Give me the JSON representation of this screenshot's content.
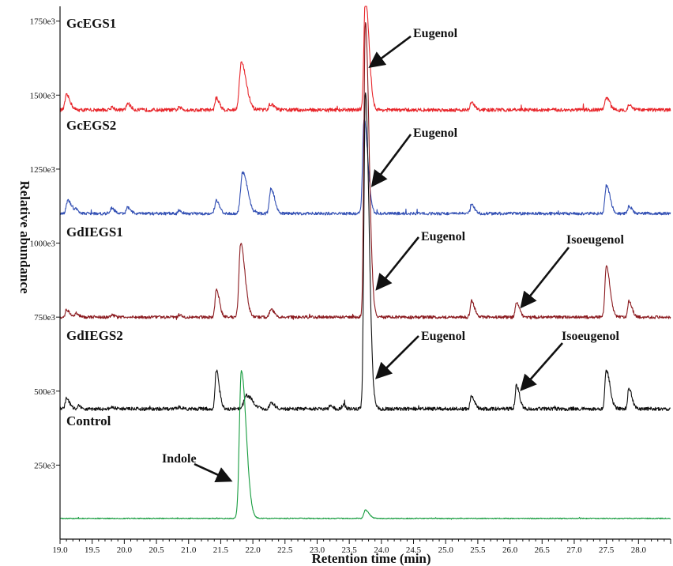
{
  "chart_data": {
    "type": "line",
    "xlabel": "Retention time (min)",
    "ylabel": "Relative abundance",
    "xlim": [
      19.0,
      28.5
    ],
    "ylim": [
      0,
      1800000
    ],
    "x_ticks": [
      "19.0",
      "19.5",
      "20.0",
      "20.5",
      "21.0",
      "21.5",
      "22.0",
      "22.5",
      "23.0",
      "23.5",
      "24.0",
      "24.5",
      "25.0",
      "25.5",
      "26.0",
      "26.5",
      "27.0",
      "27.5",
      "28.0"
    ],
    "y_ticks": [
      {
        "value": 250000,
        "label": "250e3"
      },
      {
        "value": 500000,
        "label": "500e3"
      },
      {
        "value": 750000,
        "label": "750e3"
      },
      {
        "value": 1000000,
        "label": "1000e3"
      },
      {
        "value": 1250000,
        "label": "1250e3"
      },
      {
        "value": 1500000,
        "label": "1500e3"
      },
      {
        "value": 1750000,
        "label": "1750e3"
      }
    ],
    "grid": false,
    "series": [
      {
        "name": "GcEGS1",
        "color": "#e8262b",
        "baseline": 1450000,
        "noise": 6000,
        "peaks": [
          [
            19.1,
            50000,
            0.03
          ],
          [
            19.8,
            10000,
            0.02
          ],
          [
            20.05,
            22000,
            0.025
          ],
          [
            20.85,
            8000,
            0.02
          ],
          [
            21.43,
            40000,
            0.025
          ],
          [
            21.82,
            160000,
            0.04
          ],
          [
            22.27,
            20000,
            0.03
          ],
          [
            23.75,
            380000,
            0.03
          ],
          [
            25.4,
            25000,
            0.025
          ],
          [
            27.5,
            40000,
            0.03
          ],
          [
            27.85,
            15000,
            0.025
          ]
        ]
      },
      {
        "name": "GcEGS2",
        "color": "#3350b4",
        "baseline": 1100000,
        "noise": 5000,
        "peaks": [
          [
            19.12,
            45000,
            0.03
          ],
          [
            19.25,
            15000,
            0.02
          ],
          [
            19.8,
            18000,
            0.025
          ],
          [
            20.05,
            20000,
            0.025
          ],
          [
            20.85,
            12000,
            0.02
          ],
          [
            21.43,
            45000,
            0.025
          ],
          [
            21.84,
            140000,
            0.04
          ],
          [
            22.28,
            85000,
            0.03
          ],
          [
            23.73,
            320000,
            0.03
          ],
          [
            25.4,
            30000,
            0.025
          ],
          [
            27.5,
            95000,
            0.03
          ],
          [
            27.85,
            25000,
            0.025
          ]
        ]
      },
      {
        "name": "GdIEGS1",
        "color": "#8b1a1f",
        "baseline": 750000,
        "noise": 5000,
        "peaks": [
          [
            19.1,
            25000,
            0.025
          ],
          [
            19.25,
            15000,
            0.02
          ],
          [
            19.8,
            8000,
            0.02
          ],
          [
            20.85,
            8000,
            0.02
          ],
          [
            21.43,
            95000,
            0.025
          ],
          [
            21.81,
            250000,
            0.035
          ],
          [
            22.28,
            25000,
            0.03
          ],
          [
            23.75,
            1000000,
            0.03
          ],
          [
            25.4,
            55000,
            0.025
          ],
          [
            26.1,
            50000,
            0.025
          ],
          [
            27.5,
            170000,
            0.03
          ],
          [
            27.85,
            55000,
            0.025
          ]
        ]
      },
      {
        "name": "GdIEGS2",
        "color": "#111111",
        "baseline": 440000,
        "noise": 6000,
        "peaks": [
          [
            19.1,
            35000,
            0.025
          ],
          [
            19.28,
            12000,
            0.02
          ],
          [
            19.8,
            8000,
            0.02
          ],
          [
            20.85,
            8000,
            0.02
          ],
          [
            21.43,
            130000,
            0.025
          ],
          [
            21.9,
            45000,
            0.05
          ],
          [
            22.28,
            20000,
            0.03
          ],
          [
            23.2,
            12000,
            0.02
          ],
          [
            23.4,
            12000,
            0.02
          ],
          [
            23.75,
            1070000,
            0.03
          ],
          [
            25.4,
            45000,
            0.025
          ],
          [
            26.1,
            80000,
            0.025
          ],
          [
            27.5,
            130000,
            0.03
          ],
          [
            27.85,
            70000,
            0.025
          ]
        ]
      },
      {
        "name": "Control",
        "color": "#169c3e",
        "baseline": 70000,
        "noise": 1500,
        "peaks": [
          [
            21.82,
            500000,
            0.04
          ],
          [
            23.75,
            28000,
            0.03
          ]
        ]
      }
    ],
    "annotations": [
      {
        "text": "Eugenol",
        "series": "GcEGS1",
        "x": 23.75,
        "y": 1600000
      },
      {
        "text": "Eugenol",
        "series": "GcEGS2",
        "x": 23.78,
        "y": 1200000
      },
      {
        "text": "Eugenol",
        "series": "GdIEGS1",
        "x": 23.85,
        "y": 850000
      },
      {
        "text": "Isoeugenol",
        "series": "GdIEGS1",
        "x": 26.1,
        "y": 790000
      },
      {
        "text": "Eugenol",
        "series": "GdIEGS2",
        "x": 23.85,
        "y": 550000
      },
      {
        "text": "Isoeugenol",
        "series": "GdIEGS2",
        "x": 26.1,
        "y": 510000
      },
      {
        "text": "Indole",
        "series": "Control",
        "x": 21.75,
        "y": 200000
      }
    ]
  }
}
